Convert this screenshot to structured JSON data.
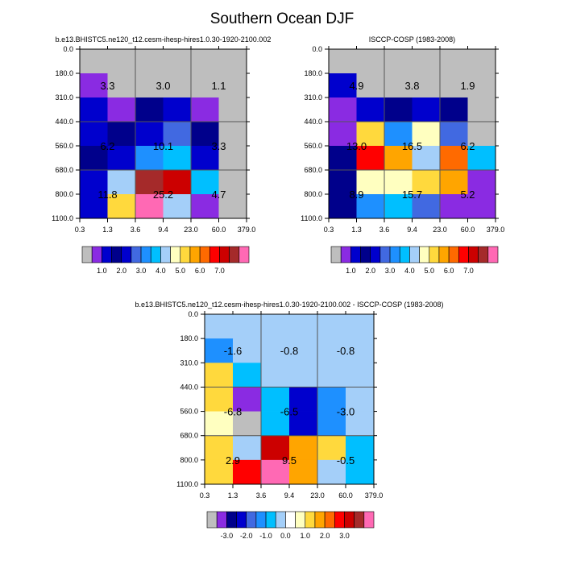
{
  "figure_title": "Southern Ocean DJF",
  "chart_data": [
    {
      "type": "heatmap",
      "title": "b.e13.BHISTC5.ne120_t12.cesm-ihesp-hires1.0.30-1920-2100.002",
      "xticks": [
        "0.3",
        "1.3",
        "3.6",
        "9.4",
        "23.0",
        "60.0",
        "379.0"
      ],
      "yticks": [
        "0.0",
        "180.0",
        "310.0",
        "440.0",
        "560.0",
        "680.0",
        "800.0",
        "1100.0"
      ],
      "cell_colors": [
        [
          "#BEBEBE",
          "#BEBEBE",
          "#BEBEBE",
          "#BEBEBE",
          "#BEBEBE",
          "#BEBEBE"
        ],
        [
          "#8A2BE2",
          "#BEBEBE",
          "#BEBEBE",
          "#BEBEBE",
          "#BEBEBE",
          "#BEBEBE"
        ],
        [
          "#0000CD",
          "#8A2BE2",
          "#00008B",
          "#0000CD",
          "#8A2BE2",
          "#BEBEBE"
        ],
        [
          "#0000CD",
          "#00008B",
          "#0000CD",
          "#4169E1",
          "#00008B",
          "#BEBEBE"
        ],
        [
          "#00008B",
          "#0000CD",
          "#1E90FF",
          "#00BFFF",
          "#0000CD",
          "#BEBEBE"
        ],
        [
          "#0000CD",
          "#A4CFF9",
          "#A52A2A",
          "#CC0000",
          "#00BFFF",
          "#BEBEBE"
        ],
        [
          "#0000CD",
          "#FFD93D",
          "#FF69B4",
          "#A4CFF9",
          "#8A2BE2",
          "#BEBEBE"
        ]
      ],
      "region_values": [
        [
          "3.3",
          "3.0",
          "1.1"
        ],
        [
          "6.2",
          "10.1",
          "3.3"
        ],
        [
          "11.8",
          "25.2",
          "4.7"
        ]
      ],
      "colorbar": {
        "colors": [
          "#BEBEBE",
          "#8A2BE2",
          "#0000CD",
          "#00008B",
          "#0000CD",
          "#4169E1",
          "#1E90FF",
          "#00BFFF",
          "#A4CFF9",
          "#FFFFC0",
          "#FFD93D",
          "#FFA500",
          "#FF6A00",
          "#FF0000",
          "#CC0000",
          "#A52A2A",
          "#FF69B4"
        ],
        "labels": [
          "1.0",
          "2.0",
          "3.0",
          "4.0",
          "5.0",
          "6.0",
          "7.0"
        ],
        "label_boundaries": [
          2,
          4,
          6,
          8,
          10,
          12,
          14
        ]
      }
    },
    {
      "type": "heatmap",
      "title": "ISCCP-COSP (1983-2008)",
      "xticks": [
        "0.3",
        "1.3",
        "3.6",
        "9.4",
        "23.0",
        "60.0",
        "379.0"
      ],
      "yticks": [
        "0.0",
        "180.0",
        "310.0",
        "440.0",
        "560.0",
        "680.0",
        "800.0",
        "1100.0"
      ],
      "cell_colors": [
        [
          "#BEBEBE",
          "#BEBEBE",
          "#BEBEBE",
          "#BEBEBE",
          "#BEBEBE",
          "#BEBEBE"
        ],
        [
          "#0000CD",
          "#BEBEBE",
          "#BEBEBE",
          "#BEBEBE",
          "#BEBEBE",
          "#BEBEBE"
        ],
        [
          "#8A2BE2",
          "#0000CD",
          "#00008B",
          "#0000CD",
          "#00008B",
          "#BEBEBE"
        ],
        [
          "#8A2BE2",
          "#FFD93D",
          "#1E90FF",
          "#FFFFC0",
          "#4169E1",
          "#BEBEBE"
        ],
        [
          "#00008B",
          "#FF0000",
          "#FFA500",
          "#A4CFF9",
          "#FF6A00",
          "#00BFFF"
        ],
        [
          "#00008B",
          "#FFFFC0",
          "#FFFFC0",
          "#FFD93D",
          "#FFA500",
          "#8A2BE2"
        ],
        [
          "#00008B",
          "#1E90FF",
          "#00BFFF",
          "#4169E1",
          "#8A2BE2",
          "#8A2BE2"
        ]
      ],
      "region_values": [
        [
          "4.9",
          "3.8",
          "1.9"
        ],
        [
          "13.0",
          "16.5",
          "6.2"
        ],
        [
          "8.9",
          "15.7",
          "5.2"
        ]
      ],
      "colorbar": {
        "colors": [
          "#BEBEBE",
          "#8A2BE2",
          "#0000CD",
          "#00008B",
          "#0000CD",
          "#4169E1",
          "#1E90FF",
          "#00BFFF",
          "#A4CFF9",
          "#FFFFC0",
          "#FFD93D",
          "#FFA500",
          "#FF6A00",
          "#FF0000",
          "#CC0000",
          "#A52A2A",
          "#FF69B4"
        ],
        "labels": [
          "1.0",
          "2.0",
          "3.0",
          "4.0",
          "5.0",
          "6.0",
          "7.0"
        ],
        "label_boundaries": [
          2,
          4,
          6,
          8,
          10,
          12,
          14
        ]
      }
    },
    {
      "type": "heatmap",
      "title": "b.e13.BHISTC5.ne120_t12.cesm-ihesp-hires1.0.30-1920-2100.002 - ISCCP-COSP (1983-2008)",
      "xticks": [
        "0.3",
        "1.3",
        "3.6",
        "9.4",
        "23.0",
        "60.0",
        "379.0"
      ],
      "yticks": [
        "0.0",
        "180.0",
        "310.0",
        "440.0",
        "560.0",
        "680.0",
        "800.0",
        "1100.0"
      ],
      "cell_colors": [
        [
          "#A4CFF9",
          "#A4CFF9",
          "#A4CFF9",
          "#A4CFF9",
          "#A4CFF9",
          "#A4CFF9"
        ],
        [
          "#1E90FF",
          "#A4CFF9",
          "#A4CFF9",
          "#A4CFF9",
          "#A4CFF9",
          "#A4CFF9"
        ],
        [
          "#FFD93D",
          "#00BFFF",
          "#A4CFF9",
          "#A4CFF9",
          "#A4CFF9",
          "#A4CFF9"
        ],
        [
          "#FFD93D",
          "#8A2BE2",
          "#00BFFF",
          "#0000CD",
          "#1E90FF",
          "#A4CFF9"
        ],
        [
          "#FFFFC0",
          "#BEBEBE",
          "#00BFFF",
          "#0000CD",
          "#1E90FF",
          "#A4CFF9"
        ],
        [
          "#FFD93D",
          "#A4CFF9",
          "#CC0000",
          "#FFA500",
          "#FFD93D",
          "#00BFFF"
        ],
        [
          "#FFD93D",
          "#FF0000",
          "#FF69B4",
          "#FFA500",
          "#A4CFF9",
          "#00BFFF"
        ]
      ],
      "region_values": [
        [
          "-1.6",
          "-0.8",
          "-0.8"
        ],
        [
          "-6.8",
          "-6.5",
          "-3.0"
        ],
        [
          "2.9",
          "9.5",
          "-0.5"
        ]
      ],
      "colorbar": {
        "colors": [
          "#BEBEBE",
          "#8A2BE2",
          "#00008B",
          "#0000CD",
          "#4169E1",
          "#1E90FF",
          "#00BFFF",
          "#A4CFF9",
          "#FFFFFF",
          "#FFFFC0",
          "#FFD93D",
          "#FFA500",
          "#FF6A00",
          "#FF0000",
          "#CC0000",
          "#A52A2A",
          "#FF69B4"
        ],
        "labels": [
          "-3.0",
          "-2.0",
          "-1.0",
          "0.0",
          "1.0",
          "2.0",
          "3.0"
        ],
        "label_boundaries": [
          2,
          4,
          6,
          8,
          10,
          12,
          14
        ]
      }
    }
  ]
}
